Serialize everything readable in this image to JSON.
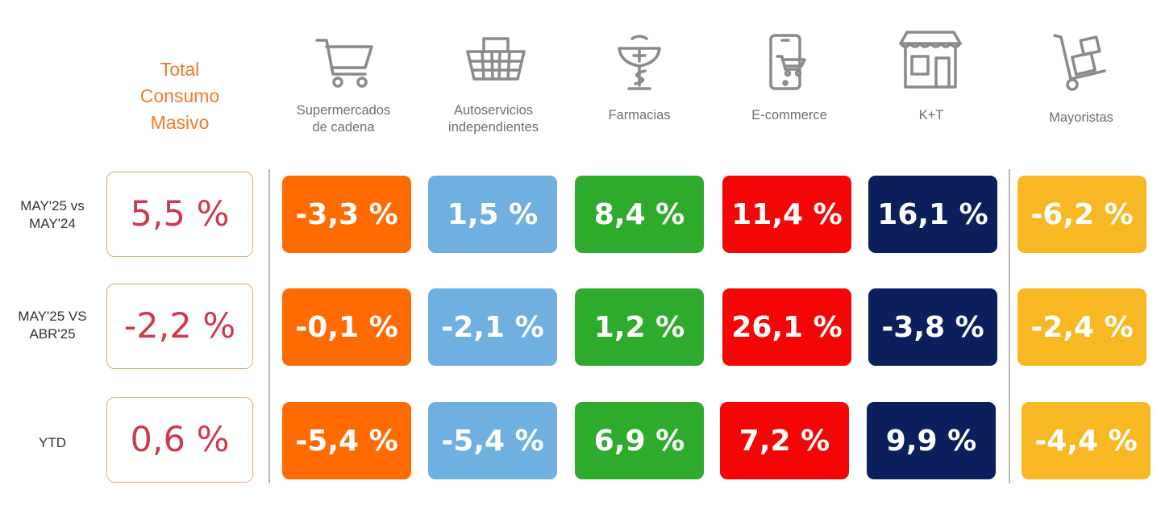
{
  "total": {
    "title_lines": [
      "Total",
      "Consumo",
      "Masivo"
    ],
    "color": "#f07a2a",
    "value_color": "#cc3b4c"
  },
  "periods": [
    {
      "lines": [
        "MAY'25 vs",
        "MAY'24"
      ]
    },
    {
      "lines": [
        "MAY'25 VS",
        "ABR'25"
      ]
    },
    {
      "lines": [
        "YTD"
      ]
    }
  ],
  "channels": [
    {
      "label_lines": [
        "Supermercados",
        "de cadena"
      ],
      "icon": "shopping-cart-icon",
      "color": "#ff6b00"
    },
    {
      "label_lines": [
        "Autoservicios",
        "independientes"
      ],
      "icon": "shopping-basket-icon",
      "color": "#6fb0e0"
    },
    {
      "label_lines": [
        "Farmacias"
      ],
      "icon": "pharmacy-icon",
      "color": "#2eaa2c"
    },
    {
      "label_lines": [
        "E-commerce"
      ],
      "icon": "mobile-cart-icon",
      "color": "#f50606"
    },
    {
      "label_lines": [
        "K+T"
      ],
      "icon": "storefront-icon",
      "color": "#0b1f5c"
    },
    {
      "label_lines": [
        "Mayoristas"
      ],
      "icon": "hand-truck-icon",
      "color": "#f7b824"
    }
  ],
  "chart_data": {
    "type": "table",
    "columns": [
      "Total Consumo Masivo",
      "Supermercados de cadena",
      "Autoservicios independientes",
      "Farmacias",
      "E-commerce",
      "K+T",
      "Mayoristas"
    ],
    "rows": [
      "MAY'25 vs MAY'24",
      "MAY'25 VS ABR'25",
      "YTD"
    ],
    "values": [
      [
        5.5,
        -3.3,
        1.5,
        8.4,
        11.4,
        16.1,
        -6.2
      ],
      [
        -2.2,
        -0.1,
        -2.1,
        1.2,
        26.1,
        -3.8,
        -2.4
      ],
      [
        0.6,
        -5.4,
        -5.4,
        6.9,
        7.2,
        9.9,
        -4.4
      ]
    ],
    "display": [
      [
        "5,5 %",
        "-3,3 %",
        "1,5 %",
        "8,4 %",
        "11,4 %",
        "16,1 %",
        "-6,2 %"
      ],
      [
        "-2,2 %",
        "-0,1 %",
        "-2,1 %",
        "1,2 %",
        "26,1 %",
        "-3,8 %",
        "-2,4 %"
      ],
      [
        "0,6 %",
        "-5,4 %",
        "-5,4 %",
        "6,9 %",
        "7,2 %",
        "9,9 %",
        "-4,4 %"
      ]
    ],
    "unit": "%"
  }
}
